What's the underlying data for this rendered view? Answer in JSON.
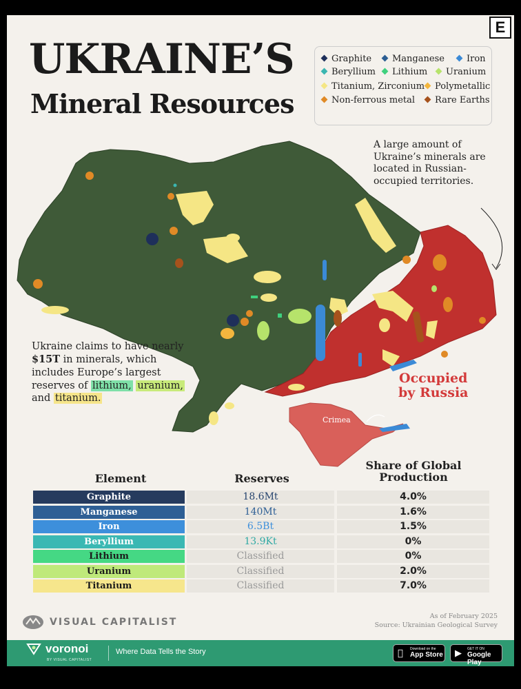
{
  "header": {
    "title_line1": "UKRAINE’S",
    "title_line2": "Mineral Resources",
    "brand_badge": "E"
  },
  "legend": {
    "items": [
      {
        "label": "Graphite",
        "color": "#1e2f5a"
      },
      {
        "label": "Manganese",
        "color": "#2c5e93"
      },
      {
        "label": "Iron",
        "color": "#3b8ad6"
      },
      {
        "label": "Beryllium",
        "color": "#3bb6b1"
      },
      {
        "label": "Lithium",
        "color": "#3fd07e"
      },
      {
        "label": "Uranium",
        "color": "#b6e36b"
      },
      {
        "label": "Titanium, Zirconium",
        "color": "#f5e685"
      },
      {
        "label": "Polymetallic",
        "color": "#f3b63e"
      },
      {
        "label": "Non-ferrous metal",
        "color": "#e08a26"
      },
      {
        "label": "Rare Earths",
        "color": "#a6521c"
      }
    ]
  },
  "map": {
    "annotation_top": "A large amount of Ukraine’s minerals are located in Russian-occupied territories.",
    "annotation_left_pre": "Ukraine claims to have nearly ",
    "annotation_left_bold": "$15T",
    "annotation_left_mid": " in minerals, which includes Europe’s largest reserves of ",
    "hl_lithium": "lithium,",
    "hl_uranium": "uranium,",
    "annotation_left_and": " and ",
    "hl_titanium": "titanium.",
    "occupied_label_1": "Occupied",
    "occupied_label_2": "by Russia",
    "crimea_label": "Crimea",
    "colors": {
      "land": "#3f5a38",
      "occupied": "#c0302e",
      "crimea": "#d9605a"
    }
  },
  "table": {
    "headers": {
      "element": "Element",
      "reserves": "Reserves",
      "share_line1": "Share of Global",
      "share_line2": "Production"
    },
    "rows": [
      {
        "element": "Graphite",
        "reserves": "18.6Mt",
        "share": "4.0%",
        "color": "#263b5e",
        "text": "#fff",
        "res_color": "#26446e"
      },
      {
        "element": "Manganese",
        "reserves": "140Mt",
        "share": "1.6%",
        "color": "#2e5f95",
        "text": "#fff",
        "res_color": "#2e5f95"
      },
      {
        "element": "Iron",
        "reserves": "6.5Bt",
        "share": "1.5%",
        "color": "#3d8fdb",
        "text": "#fff",
        "res_color": "#3d8fdb"
      },
      {
        "element": "Beryllium",
        "reserves": "13.9Kt",
        "share": "0%",
        "color": "#3ab8b3",
        "text": "#fff",
        "res_color": "#2fa9a4"
      },
      {
        "element": "Lithium",
        "reserves": "Classified",
        "share": "0%",
        "color": "#45d884",
        "text": "#1b1b1b",
        "res_color": "#999999"
      },
      {
        "element": "Uranium",
        "reserves": "Classified",
        "share": "2.0%",
        "color": "#bfe97a",
        "text": "#1b1b1b",
        "res_color": "#999999"
      },
      {
        "element": "Titanium",
        "reserves": "Classified",
        "share": "7.0%",
        "color": "#f6e68c",
        "text": "#1b1b1b",
        "res_color": "#999999"
      }
    ]
  },
  "footer": {
    "vc_name": "VISUAL CAPITALIST",
    "as_of": "As of February 2025",
    "source": "Source: Ukrainian Geological Survey",
    "voronoi": "voronoi",
    "voronoi_sub": "BY VISUAL CAPITALIST",
    "tagline": "Where Data Tells the Story",
    "app_store_small": "Download on the",
    "app_store": "App Store",
    "google_small": "GET IT ON",
    "google": "Google Play"
  }
}
